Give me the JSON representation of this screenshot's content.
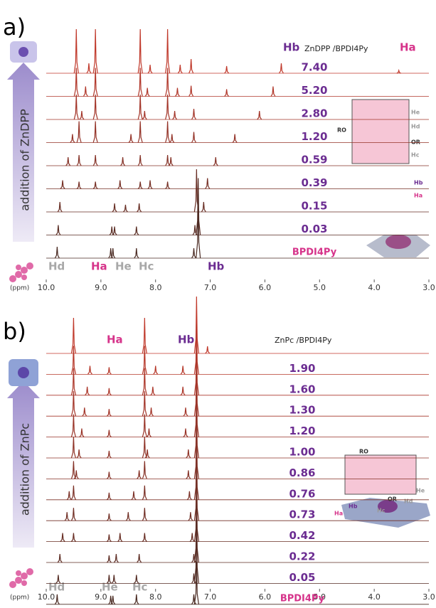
{
  "x_axis": {
    "unit": "(ppm)",
    "ticks": [
      {
        "value": 10,
        "label": "10.0"
      },
      {
        "value": 9,
        "label": "9.0"
      },
      {
        "value": 8,
        "label": "8.0"
      },
      {
        "value": 7,
        "label": "7.0"
      },
      {
        "value": 6,
        "label": "6.0"
      },
      {
        "value": 5,
        "label": "5.0"
      },
      {
        "value": 4,
        "label": "4.0"
      },
      {
        "value": 3,
        "label": "3.0"
      }
    ]
  },
  "panels": [
    {
      "label": "a)",
      "arrow_label": "addition of ZnDPP",
      "header": {
        "hb": "Hb",
        "ratio": "ZnDPP /BPDI4Py",
        "ha": "Ha"
      },
      "trace_color_top": "#c0392b",
      "trace_color_bottom": "#4a2a22",
      "traces": [
        {
          "label": "7.40",
          "peaks": [
            [
              9.45,
              62
            ],
            [
              9.22,
              14
            ],
            [
              9.1,
              62
            ],
            [
              8.28,
              62
            ],
            [
              8.1,
              12
            ],
            [
              7.78,
              62
            ],
            [
              7.55,
              12
            ],
            [
              7.35,
              20
            ],
            [
              6.7,
              10
            ],
            [
              5.7,
              14
            ],
            [
              3.55,
              4
            ]
          ]
        },
        {
          "label": "5.20",
          "peaks": [
            [
              9.45,
              40
            ],
            [
              9.28,
              14
            ],
            [
              9.1,
              40
            ],
            [
              8.28,
              40
            ],
            [
              8.15,
              12
            ],
            [
              7.78,
              40
            ],
            [
              7.6,
              12
            ],
            [
              7.35,
              15
            ],
            [
              6.7,
              10
            ],
            [
              5.85,
              14
            ]
          ]
        },
        {
          "label": "2.80",
          "peaks": [
            [
              9.45,
              35
            ],
            [
              9.35,
              12
            ],
            [
              9.1,
              35
            ],
            [
              8.28,
              35
            ],
            [
              8.2,
              12
            ],
            [
              7.78,
              35
            ],
            [
              7.65,
              12
            ],
            [
              7.3,
              15
            ],
            [
              6.1,
              12
            ]
          ]
        },
        {
          "label": "1.20",
          "peaks": [
            [
              9.52,
              12
            ],
            [
              9.4,
              30
            ],
            [
              9.1,
              30
            ],
            [
              8.45,
              12
            ],
            [
              8.28,
              30
            ],
            [
              7.78,
              30
            ],
            [
              7.7,
              12
            ],
            [
              7.3,
              15
            ],
            [
              6.55,
              12
            ]
          ]
        },
        {
          "label": "0.59",
          "peaks": [
            [
              9.6,
              12
            ],
            [
              9.4,
              15
            ],
            [
              9.1,
              15
            ],
            [
              8.6,
              12
            ],
            [
              8.28,
              15
            ],
            [
              7.78,
              15
            ],
            [
              7.72,
              12
            ],
            [
              6.9,
              12
            ]
          ]
        },
        {
          "label": "0.39",
          "peaks": [
            [
              9.7,
              12
            ],
            [
              9.4,
              10
            ],
            [
              9.1,
              10
            ],
            [
              8.65,
              12
            ],
            [
              8.28,
              10
            ],
            [
              8.1,
              12
            ],
            [
              7.78,
              10
            ],
            [
              7.05,
              15
            ]
          ]
        },
        {
          "label": "0.15",
          "peaks": [
            [
              9.75,
              14
            ],
            [
              8.75,
              12
            ],
            [
              8.55,
              10
            ],
            [
              8.3,
              12
            ],
            [
              7.25,
              60
            ],
            [
              7.12,
              14
            ]
          ]
        },
        {
          "label": "0.03",
          "peaks": [
            [
              9.78,
              14
            ],
            [
              8.8,
              12
            ],
            [
              8.75,
              12
            ],
            [
              8.35,
              12
            ],
            [
              7.28,
              14
            ],
            [
              7.22,
              80
            ]
          ]
        },
        {
          "label": "BPDI4Py",
          "peaks": [
            [
              9.8,
              16
            ],
            [
              8.82,
              14
            ],
            [
              8.78,
              14
            ],
            [
              8.35,
              14
            ],
            [
              7.3,
              14
            ],
            [
              7.22,
              90
            ]
          ]
        }
      ],
      "peak_labels": [
        "Hd",
        "Ha",
        "He",
        "Hc",
        "Hb"
      ],
      "structure_labels": [
        "He",
        "Hd",
        "RO",
        "OR",
        "Hc",
        "Hb",
        "Ha"
      ]
    },
    {
      "label": "b)",
      "arrow_label": "addition of ZnPc",
      "header": {
        "ha": "Ha",
        "hb": "Hb",
        "ratio": "ZnPc /BPDI4Py"
      },
      "trace_color_top": "#c0392b",
      "trace_color_bottom": "#4a2a22",
      "traces": [
        {
          "peaks": [
            [
              9.5,
              50
            ],
            [
              8.2,
              50
            ],
            [
              7.25,
              80
            ],
            [
              7.05,
              10
            ]
          ]
        },
        {
          "label": "1.90",
          "peaks": [
            [
              9.5,
              40
            ],
            [
              9.2,
              12
            ],
            [
              8.85,
              10
            ],
            [
              8.2,
              40
            ],
            [
              8.0,
              12
            ],
            [
              7.5,
              12
            ],
            [
              7.25,
              70
            ]
          ]
        },
        {
          "label": "1.60",
          "peaks": [
            [
              9.5,
              38
            ],
            [
              9.25,
              12
            ],
            [
              8.85,
              10
            ],
            [
              8.2,
              38
            ],
            [
              8.05,
              12
            ],
            [
              7.5,
              12
            ],
            [
              7.25,
              70
            ]
          ]
        },
        {
          "label": "1.30",
          "peaks": [
            [
              9.5,
              35
            ],
            [
              9.3,
              12
            ],
            [
              8.85,
              10
            ],
            [
              8.2,
              35
            ],
            [
              8.08,
              12
            ],
            [
              7.45,
              12
            ],
            [
              7.25,
              70
            ]
          ]
        },
        {
          "label": "1.20",
          "peaks": [
            [
              9.5,
              32
            ],
            [
              9.35,
              12
            ],
            [
              8.85,
              10
            ],
            [
              8.2,
              32
            ],
            [
              8.12,
              12
            ],
            [
              7.45,
              12
            ],
            [
              7.25,
              70
            ]
          ]
        },
        {
          "label": "1.00",
          "peaks": [
            [
              9.5,
              30
            ],
            [
              9.4,
              12
            ],
            [
              8.85,
              10
            ],
            [
              8.2,
              30
            ],
            [
              8.15,
              12
            ],
            [
              7.4,
              12
            ],
            [
              7.25,
              70
            ]
          ]
        },
        {
          "label": "0.86",
          "peaks": [
            [
              9.5,
              25
            ],
            [
              9.45,
              12
            ],
            [
              8.85,
              10
            ],
            [
              8.3,
              12
            ],
            [
              8.2,
              25
            ],
            [
              7.4,
              12
            ],
            [
              7.25,
              70
            ]
          ]
        },
        {
          "label": "0.76",
          "peaks": [
            [
              9.58,
              12
            ],
            [
              9.5,
              20
            ],
            [
              8.85,
              10
            ],
            [
              8.4,
              12
            ],
            [
              8.2,
              20
            ],
            [
              7.38,
              12
            ],
            [
              7.25,
              70
            ]
          ]
        },
        {
          "label": "0.73",
          "peaks": [
            [
              9.62,
              12
            ],
            [
              9.5,
              18
            ],
            [
              8.85,
              10
            ],
            [
              8.5,
              12
            ],
            [
              8.2,
              18
            ],
            [
              7.36,
              12
            ],
            [
              7.25,
              70
            ]
          ]
        },
        {
          "label": "0.42",
          "peaks": [
            [
              9.7,
              12
            ],
            [
              9.5,
              12
            ],
            [
              8.85,
              10
            ],
            [
              8.65,
              12
            ],
            [
              8.2,
              12
            ],
            [
              7.33,
              12
            ],
            [
              7.25,
              70
            ]
          ]
        },
        {
          "label": "0.22",
          "peaks": [
            [
              9.75,
              12
            ],
            [
              8.85,
              10
            ],
            [
              8.72,
              12
            ],
            [
              8.3,
              12
            ],
            [
              7.3,
              12
            ],
            [
              7.25,
              80
            ]
          ]
        },
        {
          "label": "0.05",
          "peaks": [
            [
              9.78,
              12
            ],
            [
              8.85,
              12
            ],
            [
              8.76,
              12
            ],
            [
              8.35,
              12
            ],
            [
              7.3,
              14
            ],
            [
              7.25,
              90
            ]
          ]
        },
        {
          "label": "BPDI4Py",
          "peaks": [
            [
              9.8,
              14
            ],
            [
              8.82,
              12
            ],
            [
              8.78,
              12
            ],
            [
              8.35,
              14
            ],
            [
              7.3,
              14
            ],
            [
              7.25,
              60
            ]
          ]
        }
      ],
      "peak_labels": [
        "Hd",
        "He",
        "Hc"
      ],
      "structure_labels": [
        "RO",
        "OR",
        "He",
        "Hd",
        "Hc",
        "Hb",
        "Ha"
      ]
    }
  ]
}
